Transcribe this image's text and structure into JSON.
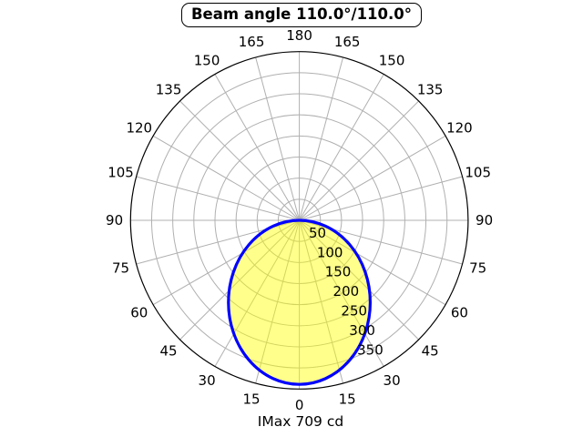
{
  "title": "Beam angle 110.0°/110.0°",
  "caption": "IMax 709 cd",
  "colors": {
    "background": "#ffffff",
    "grid": "#b0b0b0",
    "outer_circle": "#000000",
    "beam_stroke": "#0000ff",
    "beam_fill": "#ffff00",
    "beam_fill_opacity": 0.45,
    "text": "#000000"
  },
  "chart_data": {
    "type": "polar",
    "title": "Beam angle 110.0°/110.0°",
    "beam_angle_deg": [
      110.0,
      110.0
    ],
    "imax_cd": 709,
    "caption": "IMax 709 cd",
    "r_axis": {
      "max": 400,
      "ring_step": 50,
      "tick_labels": [
        50,
        100,
        150,
        200,
        250,
        300,
        350
      ],
      "tick_label_angle_deg": 22.5
    },
    "theta_axis": {
      "zero_location": "bottom",
      "grid_step_deg": 15,
      "tick_labels": [
        "0",
        "15",
        "30",
        "45",
        "60",
        "75",
        "90",
        "105",
        "120",
        "135",
        "150",
        "165",
        "180",
        "165",
        "150",
        "135",
        "120",
        "105",
        "90",
        "75",
        "60",
        "45",
        "30",
        "15"
      ]
    },
    "beam_curve": {
      "model": "ellipse_through_origin",
      "r_axial": 389,
      "r_halfwidth": 168,
      "symmetric": true,
      "samples_deg": [
        0,
        15,
        30,
        45,
        60,
        75,
        90
      ],
      "samples_r": [
        389,
        367,
        310,
        235,
        155,
        76,
        0
      ]
    },
    "grid": true,
    "legend": false
  }
}
